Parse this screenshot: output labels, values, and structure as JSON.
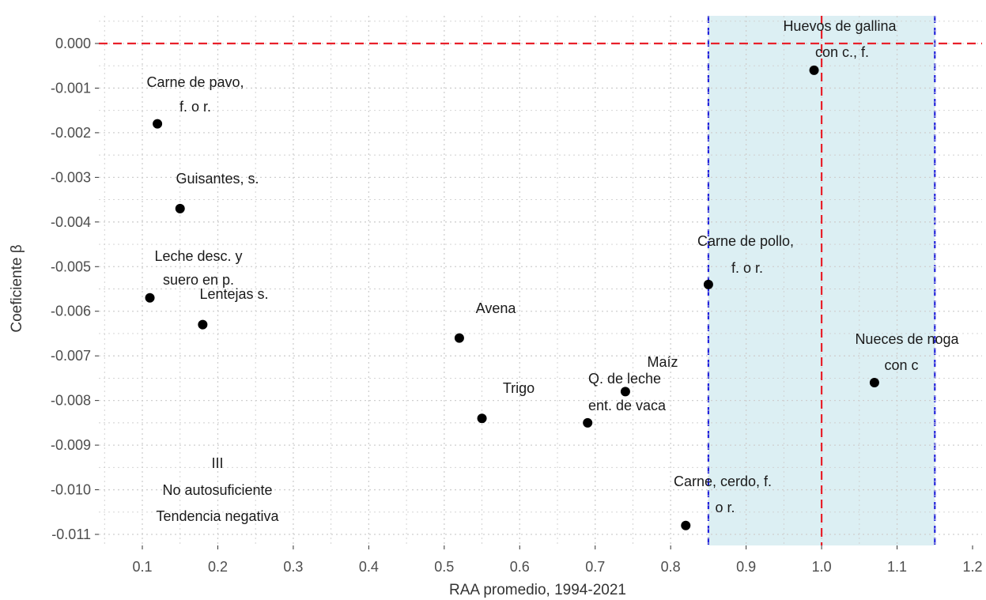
{
  "chart_data": {
    "type": "scatter",
    "xlabel": "RAA promedio, 1994-2021",
    "ylabel": "Coeficiente β",
    "xlim": [
      0.05,
      1.2
    ],
    "ylim": [
      -0.0113,
      0.0006
    ],
    "x_ticks": [
      "0.1",
      "0.2",
      "0.3",
      "0.4",
      "0.5",
      "0.6",
      "0.7",
      "0.8",
      "0.9",
      "1.0",
      "1.1",
      "1.2"
    ],
    "y_ticks": [
      "0.000",
      "-0.001",
      "-0.002",
      "-0.003",
      "-0.004",
      "-0.005",
      "-0.006",
      "-0.007",
      "-0.008",
      "-0.009",
      "-0.010",
      "-0.011"
    ],
    "grid": true,
    "reference_lines": {
      "horizontal_red_dashed": 0.0,
      "vertical_red_dashed": 1.0
    },
    "shaded_band": {
      "x_range": [
        0.85,
        1.15
      ],
      "fill": "#dceff3",
      "border": "#2222dd",
      "border_style": "dashed"
    },
    "colors": {
      "point": "#000000",
      "ref_line": "#e8202a",
      "band_line": "#2222dd",
      "grid": "#cfcfcf"
    },
    "points": [
      {
        "x": 0.12,
        "y": -0.0018,
        "label": [
          "Carne de pavo,",
          "f. o r."
        ]
      },
      {
        "x": 0.15,
        "y": -0.0037,
        "label": [
          "Guisantes, s."
        ]
      },
      {
        "x": 0.11,
        "y": -0.0057,
        "label": [
          "Leche desc. y",
          "suero en p."
        ]
      },
      {
        "x": 0.18,
        "y": -0.0063,
        "label": [
          "Lentejas s."
        ]
      },
      {
        "x": 0.52,
        "y": -0.0066,
        "label": [
          "Avena"
        ]
      },
      {
        "x": 0.55,
        "y": -0.0084,
        "label": [
          "Trigo"
        ]
      },
      {
        "x": 0.69,
        "y": -0.0085,
        "label": [
          "Q. de leche",
          "ent. de vaca"
        ]
      },
      {
        "x": 0.74,
        "y": -0.0078,
        "label": [
          "Maíz"
        ]
      },
      {
        "x": 0.82,
        "y": -0.0108,
        "label": [
          "Carne, cerdo, f.",
          "o r."
        ]
      },
      {
        "x": 0.85,
        "y": -0.0054,
        "label": [
          "Carne de pollo,",
          "f. o r."
        ]
      },
      {
        "x": 0.99,
        "y": -0.0006,
        "label": [
          "Huevos de gallina",
          "con c., f."
        ]
      },
      {
        "x": 1.07,
        "y": -0.0076,
        "label": [
          "Nueces de noga",
          "con c"
        ]
      }
    ],
    "annotation": [
      "III",
      "No autosuficiente",
      "Tendencia negativa"
    ]
  }
}
